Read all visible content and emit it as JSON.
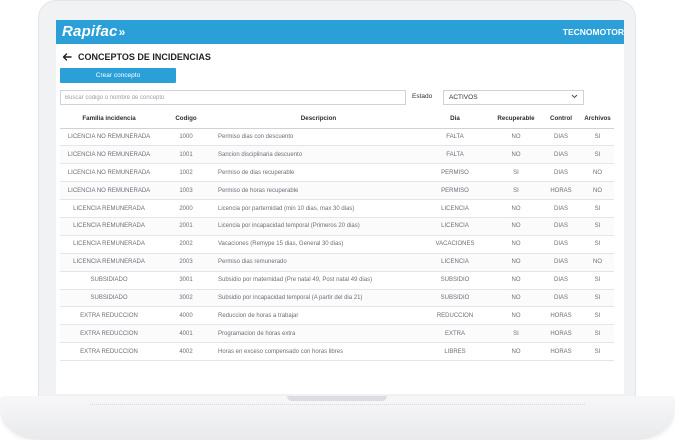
{
  "app": {
    "brand": "Rapifac",
    "brand_arrows": "»",
    "company": "TECNOMOTOR"
  },
  "page": {
    "title": "CONCEPTOS DE INCIDENCIAS"
  },
  "actions": {
    "create_label": "Crear concepto"
  },
  "filters": {
    "search_placeholder": "Buscar codigo o nombre de concepto",
    "estado_label": "Estado",
    "estado_value": "ACTIVOS"
  },
  "table": {
    "headers": {
      "familia": "Familia incidencia",
      "codigo": "Codigo",
      "descripcion": "Descripcion",
      "dia": "Dia",
      "recuperable": "Recuperable",
      "control": "Control",
      "archivos": "Archivos"
    },
    "rows": [
      {
        "familia": "LICENCIA NO REMUNERADA",
        "codigo": "1000",
        "descripcion": "Permiso dias con descuento",
        "dia": "FALTA",
        "recuperable": "NO",
        "control": "DIAS",
        "archivos": "SI"
      },
      {
        "familia": "LICENCIA NO REMUNERADA",
        "codigo": "1001",
        "descripcion": "Sancion disciplinaria descuento",
        "dia": "FALTA",
        "recuperable": "NO",
        "control": "DIAS",
        "archivos": "SI"
      },
      {
        "familia": "LICENCIA NO REMUNERADA",
        "codigo": "1002",
        "descripcion": "Permiso de dias recuperable",
        "dia": "PERMISO",
        "recuperable": "SI",
        "control": "DIAS",
        "archivos": "NO"
      },
      {
        "familia": "LICENCIA NO REMUNERADA",
        "codigo": "1003",
        "descripcion": "Permiso de horas recuperable",
        "dia": "PERMISO",
        "recuperable": "SI",
        "control": "HORAS",
        "archivos": "NO"
      },
      {
        "familia": "LICENCIA REMUNERADA",
        "codigo": "2000",
        "descripcion": "Licencia por parternidad (min 10 dias, max 30 dias)",
        "dia": "LICENCIA",
        "recuperable": "NO",
        "control": "DIAS",
        "archivos": "SI"
      },
      {
        "familia": "LICENCIA REMUNERADA",
        "codigo": "2001",
        "descripcion": "Licencia por incapacidad temporal (Primeros 20 dias)",
        "dia": "LICENCIA",
        "recuperable": "NO",
        "control": "DIAS",
        "archivos": "SI"
      },
      {
        "familia": "LICENCIA REMUNERADA",
        "codigo": "2002",
        "descripcion": "Vacaciones (Remype 15 dias, General 30 dias)",
        "dia": "VACACIONES",
        "recuperable": "NO",
        "control": "DIAS",
        "archivos": "SI"
      },
      {
        "familia": "LICENCIA REMUNERADA",
        "codigo": "2003",
        "descripcion": "Permiso dias remunerado",
        "dia": "LICENCIA",
        "recuperable": "NO",
        "control": "DIAS",
        "archivos": "NO"
      },
      {
        "familia": "SUBSIDIADO",
        "codigo": "3001",
        "descripcion": "Subsidio por maternidad (Pre natal 49, Post natal 49 dias)",
        "dia": "SUBSIDIO",
        "recuperable": "NO",
        "control": "DIAS",
        "archivos": "SI"
      },
      {
        "familia": "SUBSIDIADO",
        "codigo": "3002",
        "descripcion": "Subsidio por incapacidad temporal (A partir del dia 21)",
        "dia": "SUBSIDIO",
        "recuperable": "NO",
        "control": "DIAS",
        "archivos": "SI"
      },
      {
        "familia": "EXTRA REDUCCION",
        "codigo": "4000",
        "descripcion": "Reduccion de horas a trabajar",
        "dia": "REDUCCION",
        "recuperable": "NO",
        "control": "HORAS",
        "archivos": "SI"
      },
      {
        "familia": "EXTRA REDUCCION",
        "codigo": "4001",
        "descripcion": "Programacion de horas extra",
        "dia": "EXTRA",
        "recuperable": "SI",
        "control": "HORAS",
        "archivos": "SI"
      },
      {
        "familia": "EXTRA REDUCCION",
        "codigo": "4002",
        "descripcion": "Horas en exceso compensado con horas libres",
        "dia": "LIBRES",
        "recuperable": "NO",
        "control": "HORAS",
        "archivos": "SI"
      }
    ]
  },
  "icons": {
    "back": "arrow-left-icon",
    "chevron": "chevron-down-icon"
  },
  "colors": {
    "accent": "#2a9fd8"
  }
}
